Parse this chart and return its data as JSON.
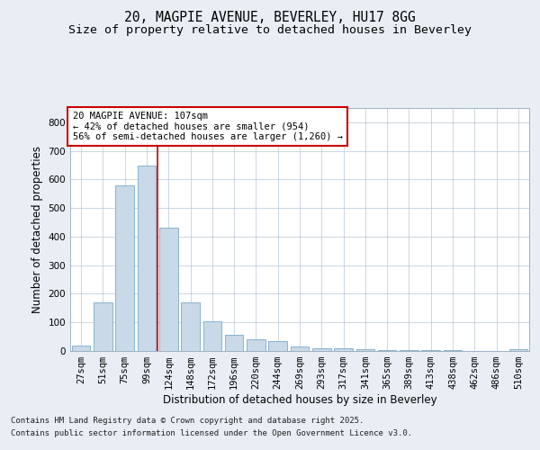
{
  "title_line1": "20, MAGPIE AVENUE, BEVERLEY, HU17 8GG",
  "title_line2": "Size of property relative to detached houses in Beverley",
  "xlabel": "Distribution of detached houses by size in Beverley",
  "ylabel": "Number of detached properties",
  "categories": [
    "27sqm",
    "51sqm",
    "75sqm",
    "99sqm",
    "124sqm",
    "148sqm",
    "172sqm",
    "196sqm",
    "220sqm",
    "244sqm",
    "269sqm",
    "293sqm",
    "317sqm",
    "341sqm",
    "365sqm",
    "389sqm",
    "413sqm",
    "438sqm",
    "462sqm",
    "486sqm",
    "510sqm"
  ],
  "values": [
    20,
    170,
    580,
    650,
    430,
    170,
    105,
    58,
    40,
    35,
    15,
    10,
    8,
    5,
    4,
    3,
    3,
    2,
    1,
    1,
    5
  ],
  "bar_color": "#c9d9e8",
  "bar_edgecolor": "#7aaac8",
  "property_line_x": 3.5,
  "property_line_color": "#cc0000",
  "annotation_text": "20 MAGPIE AVENUE: 107sqm\n← 42% of detached houses are smaller (954)\n56% of semi-detached houses are larger (1,260) →",
  "annotation_box_color": "#cc0000",
  "ylim": [
    0,
    850
  ],
  "yticks": [
    0,
    100,
    200,
    300,
    400,
    500,
    600,
    700,
    800
  ],
  "background_color": "#e8eef4",
  "plot_background": "#ffffff",
  "footer_line1": "Contains HM Land Registry data © Crown copyright and database right 2025.",
  "footer_line2": "Contains public sector information licensed under the Open Government Licence v3.0.",
  "title_fontsize": 10.5,
  "subtitle_fontsize": 9.5,
  "axis_label_fontsize": 8.5,
  "tick_fontsize": 7.5,
  "annotation_fontsize": 7.5,
  "footer_fontsize": 6.5
}
